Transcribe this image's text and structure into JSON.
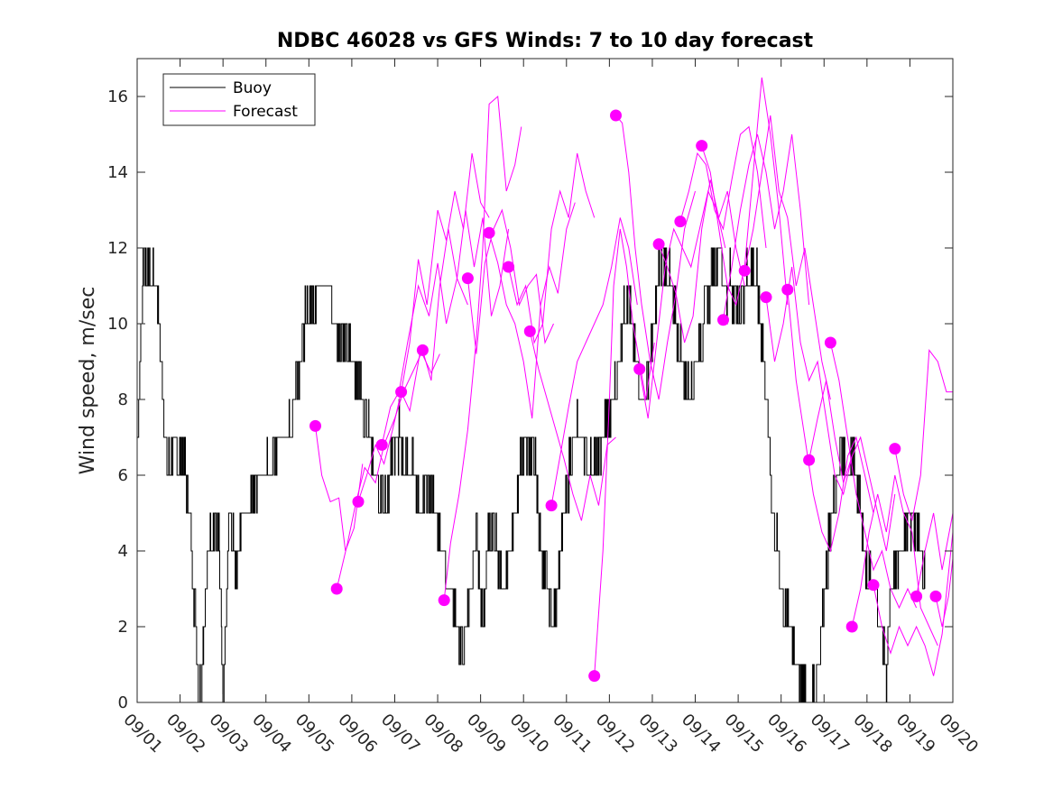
{
  "chart_data": {
    "type": "line",
    "title": "NDBC 46028 vs GFS Winds: 7 to 10 day forecast",
    "xlabel": "",
    "ylabel": "Wind speed, m/sec",
    "xlim": [
      1,
      20
    ],
    "ylim": [
      0,
      17
    ],
    "x_ticks": [
      1,
      2,
      3,
      4,
      5,
      6,
      7,
      8,
      9,
      10,
      11,
      12,
      13,
      14,
      15,
      16,
      17,
      18,
      19,
      20
    ],
    "x_tick_labels": [
      "09/01",
      "09/02",
      "09/03",
      "09/04",
      "09/05",
      "09/06",
      "09/07",
      "09/08",
      "09/09",
      "09/10",
      "09/11",
      "09/12",
      "09/13",
      "09/14",
      "09/15",
      "09/16",
      "09/17",
      "09/18",
      "09/19",
      "09/20"
    ],
    "y_ticks": [
      0,
      2,
      4,
      6,
      8,
      10,
      12,
      14,
      16
    ],
    "y_tick_labels": [
      "0",
      "2",
      "4",
      "6",
      "8",
      "10",
      "12",
      "14",
      "16"
    ],
    "legend": {
      "position": "top-left",
      "entries": [
        "Buoy",
        "Forecast"
      ]
    },
    "colors": {
      "buoy": "#000000",
      "forecast": "#ff00ff",
      "axis": "#262626"
    },
    "buoy_keypoints": [
      [
        1.0,
        7
      ],
      [
        1.1,
        10
      ],
      [
        1.15,
        12
      ],
      [
        1.25,
        11
      ],
      [
        1.45,
        11
      ],
      [
        1.55,
        9
      ],
      [
        1.7,
        6.5
      ],
      [
        2.1,
        6.5
      ],
      [
        2.2,
        5
      ],
      [
        2.35,
        2.5
      ],
      [
        2.45,
        0
      ],
      [
        2.55,
        2
      ],
      [
        2.7,
        4.5
      ],
      [
        2.9,
        4.5
      ],
      [
        3.0,
        0
      ],
      [
        3.15,
        5
      ],
      [
        3.3,
        3.5
      ],
      [
        3.45,
        5
      ],
      [
        3.6,
        5
      ],
      [
        3.75,
        6
      ],
      [
        4.1,
        6
      ],
      [
        4.3,
        7
      ],
      [
        4.55,
        7
      ],
      [
        4.7,
        8.5
      ],
      [
        4.9,
        10
      ],
      [
        5.05,
        10.5
      ],
      [
        5.2,
        11
      ],
      [
        5.45,
        11
      ],
      [
        5.6,
        10
      ],
      [
        5.8,
        9.5
      ],
      [
        6.05,
        9
      ],
      [
        6.25,
        8
      ],
      [
        6.4,
        7.5
      ],
      [
        6.55,
        6
      ],
      [
        6.75,
        5
      ],
      [
        6.95,
        6.5
      ],
      [
        7.1,
        7
      ],
      [
        7.3,
        6.5
      ],
      [
        7.45,
        6
      ],
      [
        7.6,
        5
      ],
      [
        7.8,
        5.5
      ],
      [
        7.95,
        5
      ],
      [
        8.1,
        4
      ],
      [
        8.3,
        3
      ],
      [
        8.45,
        2
      ],
      [
        8.6,
        1
      ],
      [
        8.75,
        3
      ],
      [
        8.9,
        4.5
      ],
      [
        9.05,
        2
      ],
      [
        9.15,
        4
      ],
      [
        9.3,
        5
      ],
      [
        9.5,
        3
      ],
      [
        9.7,
        4
      ],
      [
        9.9,
        6
      ],
      [
        10.05,
        7
      ],
      [
        10.25,
        6.5
      ],
      [
        10.4,
        4
      ],
      [
        10.55,
        3
      ],
      [
        10.7,
        2
      ],
      [
        10.85,
        4
      ],
      [
        11.05,
        6
      ],
      [
        11.2,
        7
      ],
      [
        11.4,
        7
      ],
      [
        11.55,
        6
      ],
      [
        11.75,
        6.5
      ],
      [
        11.95,
        7.5
      ],
      [
        12.1,
        8
      ],
      [
        12.3,
        10
      ],
      [
        12.45,
        11
      ],
      [
        12.6,
        9
      ],
      [
        12.75,
        8
      ],
      [
        12.9,
        8.5
      ],
      [
        13.05,
        10
      ],
      [
        13.2,
        12
      ],
      [
        13.4,
        11
      ],
      [
        13.55,
        10
      ],
      [
        13.7,
        9
      ],
      [
        13.85,
        8
      ],
      [
        14.0,
        9
      ],
      [
        14.2,
        10
      ],
      [
        14.35,
        11
      ],
      [
        14.55,
        12
      ],
      [
        14.7,
        11
      ],
      [
        14.85,
        11
      ],
      [
        15.0,
        10
      ],
      [
        15.15,
        11
      ],
      [
        15.3,
        11.5
      ],
      [
        15.45,
        11
      ],
      [
        15.6,
        9
      ],
      [
        15.75,
        6
      ],
      [
        15.9,
        4
      ],
      [
        16.05,
        2.5
      ],
      [
        16.2,
        2
      ],
      [
        16.35,
        1
      ],
      [
        16.5,
        0.5
      ],
      [
        16.65,
        0
      ],
      [
        16.8,
        0.5
      ],
      [
        16.95,
        2
      ],
      [
        17.1,
        4
      ],
      [
        17.25,
        5.5
      ],
      [
        17.4,
        6.5
      ],
      [
        17.55,
        6
      ],
      [
        17.7,
        6.5
      ],
      [
        17.85,
        5
      ],
      [
        18.0,
        3.5
      ],
      [
        18.15,
        3
      ],
      [
        18.3,
        2
      ],
      [
        18.45,
        1
      ],
      [
        18.6,
        3
      ],
      [
        18.75,
        4
      ],
      [
        18.9,
        4.5
      ],
      [
        19.05,
        5
      ],
      [
        19.25,
        4
      ],
      [
        19.35,
        3.5
      ]
    ],
    "forecast_series": [
      {
        "name": "Forecast",
        "x": [
          5.15,
          5.3,
          5.5,
          5.7,
          5.85,
          6.05,
          6.25
        ],
        "y": [
          7.3,
          6.0,
          5.3,
          5.4,
          4.0,
          4.6,
          6.3
        ]
      },
      {
        "name": "Forecast",
        "x": [
          5.65,
          5.9,
          6.1,
          6.3,
          6.55,
          6.75,
          7.0,
          7.2,
          7.45,
          7.65
        ],
        "y": [
          3.0,
          4.2,
          5.3,
          6.2,
          5.8,
          6.8,
          7.5,
          8.2,
          8.8,
          9.3
        ]
      },
      {
        "name": "Forecast",
        "x": [
          6.15,
          6.35,
          6.55,
          6.75,
          6.95,
          7.15,
          7.35,
          7.6,
          7.85,
          8.05
        ],
        "y": [
          5.3,
          6.0,
          6.8,
          6.3,
          7.2,
          8.2,
          7.7,
          9.3,
          8.7,
          9.2
        ]
      },
      {
        "name": "Forecast",
        "x": [
          6.7,
          6.9,
          7.1,
          7.3,
          7.55,
          7.8,
          8.0,
          8.2,
          8.45,
          8.7
        ],
        "y": [
          6.8,
          7.8,
          8.2,
          9.5,
          11.0,
          10.2,
          11.6,
          10.0,
          11.2,
          10.5
        ]
      },
      {
        "name": "Forecast",
        "x": [
          7.15,
          7.35,
          7.55,
          7.75,
          8.0,
          8.2,
          8.4,
          8.6,
          8.8,
          9.0,
          9.2
        ],
        "y": [
          8.2,
          9.5,
          11.7,
          10.5,
          13.0,
          12.2,
          13.5,
          12.5,
          14.5,
          13.2,
          12.8
        ]
      },
      {
        "name": "Forecast",
        "x": [
          7.65,
          7.85,
          8.05,
          8.25,
          8.45,
          8.65,
          8.85,
          9.05,
          9.25,
          9.45,
          9.65
        ],
        "y": [
          9.3,
          8.5,
          11.0,
          12.5,
          11.2,
          13.0,
          11.5,
          12.8,
          10.2,
          11.0,
          12.5
        ]
      },
      {
        "name": "Forecast",
        "x": [
          8.15,
          8.3,
          8.5,
          8.7,
          8.9,
          9.05,
          9.2,
          9.4,
          9.6,
          9.8,
          9.95
        ],
        "y": [
          2.7,
          4.2,
          5.5,
          7.2,
          9.6,
          12.0,
          15.8,
          16.0,
          13.5,
          14.2,
          15.2
        ]
      },
      {
        "name": "Forecast",
        "x": [
          8.7,
          8.9,
          9.1,
          9.3,
          9.5,
          9.7,
          9.9,
          10.1,
          10.3,
          10.5,
          10.7
        ],
        "y": [
          11.2,
          9.2,
          11.6,
          12.5,
          13.0,
          12.0,
          10.5,
          11.0,
          11.3,
          9.5,
          10.0
        ]
      },
      {
        "name": "Forecast",
        "x": [
          9.2,
          9.4,
          9.6,
          9.8,
          10.0,
          10.2,
          10.4,
          10.6,
          10.8,
          11.0,
          11.2
        ],
        "y": [
          12.4,
          11.6,
          10.5,
          10.0,
          9.0,
          7.5,
          10.5,
          11.5,
          10.8,
          12.5,
          13.2
        ]
      },
      {
        "name": "Forecast",
        "x": [
          9.65,
          9.85,
          10.05,
          10.25,
          10.45,
          10.65,
          10.85,
          11.05,
          11.25,
          11.45,
          11.65
        ],
        "y": [
          11.5,
          10.5,
          11.0,
          9.5,
          10.0,
          12.5,
          13.5,
          12.8,
          14.5,
          13.5,
          12.8
        ]
      },
      {
        "name": "Forecast",
        "x": [
          10.15,
          10.35,
          10.55,
          10.75,
          10.95,
          11.15,
          11.35,
          11.55,
          11.75,
          11.95,
          12.15
        ],
        "y": [
          9.8,
          8.8,
          8.0,
          7.2,
          6.4,
          5.5,
          4.8,
          6.0,
          5.2,
          6.8,
          7.0
        ]
      },
      {
        "name": "Forecast",
        "x": [
          10.65,
          10.85,
          11.05,
          11.25,
          11.45,
          11.65,
          11.85,
          12.05,
          12.25,
          12.45,
          12.65
        ],
        "y": [
          5.2,
          6.5,
          7.8,
          9.0,
          9.5,
          10.0,
          10.5,
          11.5,
          12.8,
          12.0,
          10.5
        ]
      },
      {
        "name": "Forecast",
        "x": [
          11.65,
          11.85,
          12.0,
          12.1,
          12.25,
          12.4,
          12.55,
          12.7,
          12.85,
          13.05
        ],
        "y": [
          0.7,
          4.0,
          8.0,
          11.0,
          12.5,
          11.5,
          10.0,
          9.0,
          8.0,
          9.5
        ]
      },
      {
        "name": "Forecast",
        "x": [
          12.15,
          12.3,
          12.45,
          12.6,
          12.75,
          12.95,
          13.15,
          13.35,
          13.55,
          13.75,
          14.0
        ],
        "y": [
          15.5,
          15.3,
          14.0,
          12.0,
          10.5,
          9.0,
          8.0,
          9.5,
          10.8,
          12.5,
          13.5
        ]
      },
      {
        "name": "Forecast",
        "x": [
          12.7,
          12.9,
          13.1,
          13.3,
          13.5,
          13.7,
          13.9,
          14.1,
          14.3,
          14.5,
          14.7
        ],
        "y": [
          8.8,
          7.5,
          9.5,
          11.5,
          12.5,
          12.0,
          11.5,
          12.5,
          13.5,
          13.0,
          12.0
        ]
      },
      {
        "name": "Forecast",
        "x": [
          13.15,
          13.35,
          13.55,
          13.75,
          13.95,
          14.15,
          14.35,
          14.55,
          14.75,
          14.95,
          15.15
        ],
        "y": [
          12.1,
          11.5,
          10.8,
          9.5,
          10.2,
          12.5,
          13.8,
          12.8,
          13.5,
          12.0,
          11.0
        ]
      },
      {
        "name": "Forecast",
        "x": [
          13.65,
          13.85,
          14.05,
          14.25,
          14.45,
          14.65,
          14.85,
          15.05,
          15.25,
          15.45,
          15.65
        ],
        "y": [
          12.7,
          13.5,
          14.5,
          14.2,
          13.0,
          12.5,
          13.8,
          15.0,
          15.2,
          14.0,
          12.0
        ]
      },
      {
        "name": "Forecast",
        "x": [
          14.15,
          14.35,
          14.55,
          14.75,
          14.95,
          15.15,
          15.35,
          15.55,
          15.75,
          15.95,
          16.15
        ],
        "y": [
          14.7,
          14.0,
          12.5,
          11.0,
          10.5,
          11.5,
          14.0,
          16.5,
          15.0,
          13.0,
          10.5
        ]
      },
      {
        "name": "Forecast",
        "x": [
          14.65,
          14.85,
          15.05,
          15.25,
          15.45,
          15.65,
          15.85,
          16.05,
          16.25,
          16.45,
          16.65
        ],
        "y": [
          10.1,
          11.5,
          13.0,
          14.2,
          15.0,
          14.0,
          12.5,
          13.5,
          15.0,
          13.0,
          10.5
        ]
      },
      {
        "name": "Forecast",
        "x": [
          15.15,
          15.35,
          15.55,
          15.75,
          15.95,
          16.15,
          16.35,
          16.55,
          16.75,
          16.95,
          17.15
        ],
        "y": [
          11.4,
          12.5,
          14.0,
          15.5,
          13.5,
          12.8,
          11.0,
          12.0,
          10.5,
          9.0,
          8.0
        ]
      },
      {
        "name": "Forecast",
        "x": [
          15.65,
          15.85,
          16.05,
          16.25,
          16.45,
          16.65,
          16.85,
          17.05,
          17.25,
          17.45,
          17.65
        ],
        "y": [
          10.7,
          9.0,
          10.0,
          11.5,
          9.5,
          8.5,
          9.0,
          7.5,
          6.0,
          5.5,
          6.5
        ]
      },
      {
        "name": "Forecast",
        "x": [
          16.15,
          16.35,
          16.55,
          16.75,
          16.95,
          17.15,
          17.35,
          17.55,
          17.75,
          17.95,
          18.15
        ],
        "y": [
          10.9,
          8.5,
          7.0,
          5.5,
          4.5,
          4.0,
          5.0,
          6.5,
          7.0,
          6.0,
          5.0
        ]
      },
      {
        "name": "Forecast",
        "x": [
          16.65,
          16.85,
          17.05,
          17.25,
          17.45,
          17.65,
          17.85,
          18.05,
          18.25,
          18.45,
          18.65
        ],
        "y": [
          6.4,
          7.5,
          8.5,
          7.0,
          5.8,
          6.5,
          7.0,
          6.0,
          5.0,
          4.0,
          5.5
        ]
      },
      {
        "name": "Forecast",
        "x": [
          17.15,
          17.35,
          17.55,
          17.75,
          17.95,
          18.15,
          18.35,
          18.55,
          18.75,
          18.95,
          19.15
        ],
        "y": [
          9.5,
          8.5,
          7.0,
          5.5,
          4.5,
          3.5,
          4.0,
          3.0,
          2.5,
          3.0,
          2.5
        ]
      },
      {
        "name": "Forecast",
        "x": [
          17.65,
          17.85,
          18.05,
          18.25,
          18.45,
          18.65,
          18.85,
          19.05,
          19.25,
          19.45,
          19.65
        ],
        "y": [
          2.0,
          3.0,
          4.5,
          5.5,
          4.5,
          6.0,
          5.0,
          4.5,
          2.5,
          2.0,
          1.5
        ]
      },
      {
        "name": "Forecast",
        "x": [
          18.15,
          18.35,
          18.55,
          18.75,
          18.95,
          19.15,
          19.35,
          19.55,
          19.75,
          20.0
        ],
        "y": [
          3.1,
          2.0,
          1.3,
          2.0,
          1.5,
          2.0,
          1.5,
          0.7,
          1.8,
          4.5
        ]
      },
      {
        "name": "Forecast",
        "x": [
          18.65,
          18.85,
          19.05,
          19.25,
          19.45,
          19.65,
          19.85,
          20.0
        ],
        "y": [
          6.7,
          5.5,
          4.8,
          6.0,
          9.3,
          9.0,
          8.2,
          8.2
        ]
      },
      {
        "name": "Forecast",
        "x": [
          19.15,
          19.35,
          19.55,
          19.75,
          20.0
        ],
        "y": [
          2.8,
          4.0,
          5.0,
          3.5,
          5.0
        ]
      },
      {
        "name": "Forecast",
        "x": [
          19.6,
          19.75,
          19.9,
          20.0
        ],
        "y": [
          2.8,
          2.0,
          2.8,
          3.8
        ]
      }
    ],
    "forecast_markers": [
      {
        "x": 5.15,
        "y": 7.3
      },
      {
        "x": 5.65,
        "y": 3.0
      },
      {
        "x": 6.15,
        "y": 5.3
      },
      {
        "x": 6.7,
        "y": 6.8
      },
      {
        "x": 7.15,
        "y": 8.2
      },
      {
        "x": 7.65,
        "y": 9.3
      },
      {
        "x": 8.15,
        "y": 2.7
      },
      {
        "x": 8.7,
        "y": 11.2
      },
      {
        "x": 9.2,
        "y": 12.4
      },
      {
        "x": 9.65,
        "y": 11.5
      },
      {
        "x": 10.15,
        "y": 9.8
      },
      {
        "x": 10.65,
        "y": 5.2
      },
      {
        "x": 11.65,
        "y": 0.7
      },
      {
        "x": 12.15,
        "y": 15.5
      },
      {
        "x": 12.7,
        "y": 8.8
      },
      {
        "x": 13.15,
        "y": 12.1
      },
      {
        "x": 13.65,
        "y": 12.7
      },
      {
        "x": 14.15,
        "y": 14.7
      },
      {
        "x": 14.65,
        "y": 10.1
      },
      {
        "x": 15.15,
        "y": 11.4
      },
      {
        "x": 15.65,
        "y": 10.7
      },
      {
        "x": 16.15,
        "y": 10.9
      },
      {
        "x": 16.65,
        "y": 6.4
      },
      {
        "x": 17.15,
        "y": 9.5
      },
      {
        "x": 17.65,
        "y": 2.0
      },
      {
        "x": 18.15,
        "y": 3.1
      },
      {
        "x": 18.65,
        "y": 6.7
      },
      {
        "x": 19.15,
        "y": 2.8
      },
      {
        "x": 19.6,
        "y": 2.8
      }
    ]
  }
}
